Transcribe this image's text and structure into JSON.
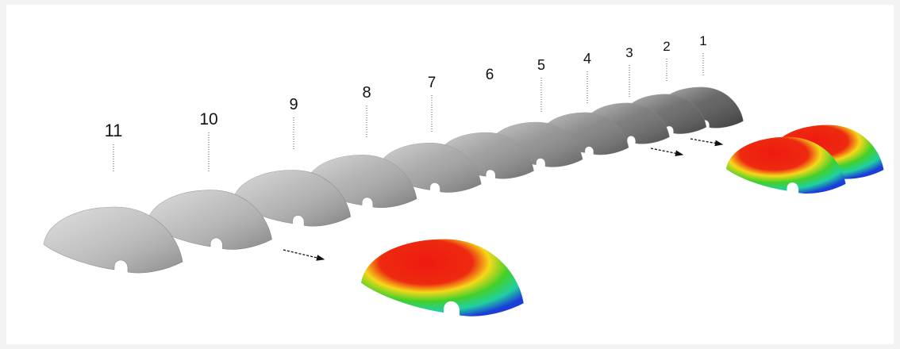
{
  "labels": [
    "11",
    "10",
    "9",
    "8",
    "7",
    "6",
    "5",
    "4",
    "3",
    "2",
    "1"
  ]
}
